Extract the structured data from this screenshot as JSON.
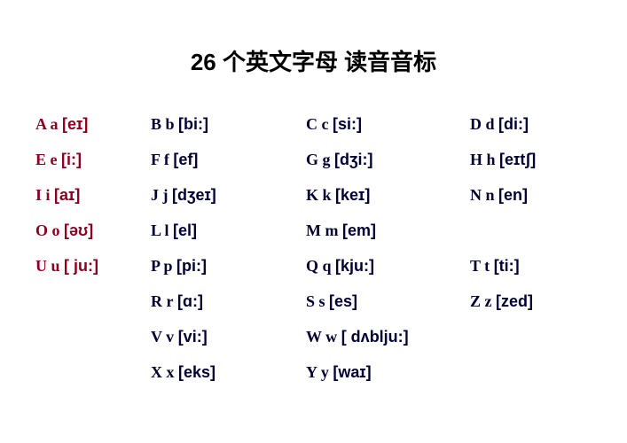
{
  "title": "26 个英文字母  读音音标",
  "colors": {
    "vowel": "#8b0020",
    "consonant": "#000033",
    "bg": "#ffffff",
    "title": "#000000"
  },
  "grid": [
    [
      {
        "letter": "A a",
        "ipa": "[eɪ]",
        "vowel": true
      },
      {
        "letter": "B b",
        "ipa": "[bi:]",
        "vowel": false
      },
      {
        "letter": "C c",
        "ipa": "[si:]",
        "vowel": false
      },
      {
        "letter": "D d",
        "ipa": "[di:]",
        "vowel": false
      }
    ],
    [
      {
        "letter": "E e",
        "ipa": "[i:]",
        "vowel": true
      },
      {
        "letter": "F f",
        "ipa": "[ef]",
        "vowel": false
      },
      {
        "letter": "G g",
        "ipa": "[dʒi:]",
        "vowel": false
      },
      {
        "letter": "H h",
        "ipa": "[eɪtʃ]",
        "vowel": false
      }
    ],
    [
      {
        "letter": "I i",
        "ipa": "[aɪ]",
        "vowel": true
      },
      {
        "letter": "J j",
        "ipa": "[dʒeɪ]",
        "vowel": false
      },
      {
        "letter": "K k",
        "ipa": "[keɪ]",
        "vowel": false
      },
      {
        "letter": "N n",
        "ipa": "[en]",
        "vowel": false
      }
    ],
    [
      {
        "letter": "O o",
        "ipa": "[əʊ]",
        "vowel": true
      },
      {
        "letter": "L l",
        "ipa": "[el]",
        "vowel": false
      },
      {
        "letter": "M m",
        "ipa": "[em]",
        "vowel": false
      },
      null
    ],
    [
      {
        "letter": "U u",
        "ipa": "[ ju:]",
        "vowel": true
      },
      {
        "letter": "P p",
        "ipa": "[pi:]",
        "vowel": false
      },
      {
        "letter": "Q q",
        "ipa": "[kju:]",
        "vowel": false
      },
      {
        "letter": "T t",
        "ipa": "[ti:]",
        "vowel": false
      }
    ],
    [
      null,
      {
        "letter": "R r",
        "ipa": "[ɑ:]",
        "vowel": false
      },
      {
        "letter": "S s",
        "ipa": "[es]",
        "vowel": false
      },
      {
        "letter": "Z z",
        "ipa": "[zed]",
        "vowel": false
      }
    ],
    [
      null,
      {
        "letter": "V v",
        "ipa": "[vi:]",
        "vowel": false
      },
      {
        "letter": "W w",
        "ipa": "[ dʌblju:]",
        "vowel": false
      },
      null
    ],
    [
      null,
      {
        "letter": "X x",
        "ipa": "[eks]",
        "vowel": false
      },
      {
        "letter": "Y y",
        "ipa": "[waɪ]",
        "vowel": false
      },
      null
    ]
  ],
  "typography": {
    "title_fontsize": 26,
    "cell_fontsize": 18,
    "title_font": "SimHei",
    "letter_font": "Times New Roman",
    "ipa_font": "Arial"
  }
}
